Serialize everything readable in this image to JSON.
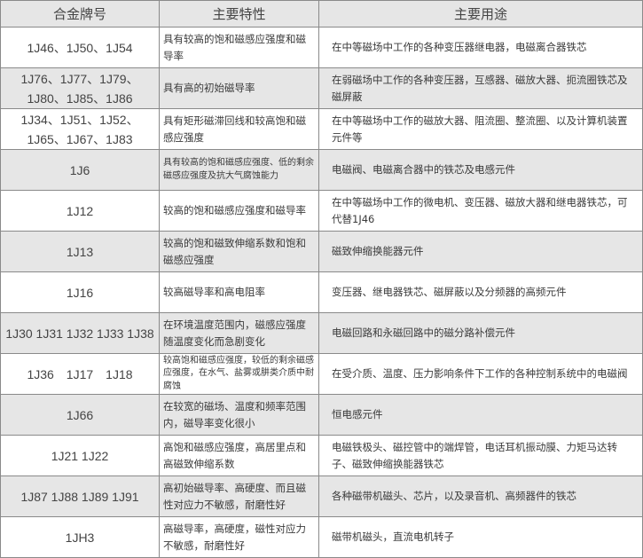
{
  "table": {
    "headers": [
      "合金牌号",
      "主要特性",
      "主要用途"
    ],
    "rows": [
      {
        "grade": "1J46、1J50、1J54",
        "property": "具有较高的饱和磁感应强度和磁导率",
        "usage": "在中等磁场中工作的各种变压器继电器，电磁离合器铁芯"
      },
      {
        "grade": "1J76、1J77、1J79、1J80、1J85、1J86",
        "property": "具有高的初始磁导率",
        "usage": "在弱磁场中工作的各种变压器，互感器、磁放大器、扼流圈铁芯及磁屏蔽"
      },
      {
        "grade": "1J34、1J51、1J52、1J65、1J67、1J83",
        "property": "具有矩形磁滞回线和较高饱和磁感应强度",
        "usage": "在中等磁场中工作的磁放大器、阻流圈、整流圈、以及计算机装置元件等"
      },
      {
        "grade": "1J6",
        "property": "具有较高的饱和磁感应强度、低的剩余磁感应强度及抗大气腐蚀能力",
        "usage": "电磁阀、电磁离合器中的铁芯及电感元件"
      },
      {
        "grade": "1J12",
        "property": "较高的饱和磁感应强度和磁导率",
        "usage": "在中等磁场中工作的微电机、变压器、磁放大器和继电器铁芯，可代替1J46"
      },
      {
        "grade": "1J13",
        "property": "较高的饱和磁致伸缩系数和饱和磁感应强度",
        "usage": "磁致伸缩换能器元件"
      },
      {
        "grade": "1J16",
        "property": "较高磁导率和高电阻率",
        "usage": "变压器、继电器铁芯、磁屏蔽以及分频器的高频元件"
      },
      {
        "grade": "1J30 1J31 1J32 1J33 1J38",
        "property": "在环境温度范围内，磁感应强度随温度变化而急剧变化",
        "usage": "电磁回路和永磁回路中的磁分路补偿元件"
      },
      {
        "grade": "1J36　1J17　1J18",
        "property": "较高饱和磁感应强度，较低的剩余磁感应强度，在水气、盐雾或肼类介质中耐腐蚀",
        "usage": "在受介质、温度、压力影响条件下工作的各种控制系统中的电磁阀"
      },
      {
        "grade": "1J66",
        "property": "在较宽的磁场、温度和频率范围内，磁导率变化很小",
        "usage": "恒电感元件"
      },
      {
        "grade": "1J21 1J22",
        "property": "高饱和磁感应强度，高居里点和高磁致伸缩系数",
        "usage": "电磁铁极头、磁控管中的端焊管，电话耳机振动膜、力矩马达转子、磁致伸缩换能器铁芯"
      },
      {
        "grade": "1J87 1J88 1J89 1J91",
        "property": "高初始磁导率、高硬度、而且磁性对应力不敏感，耐磨性好",
        "usage": "各种磁带机磁头、芯片，以及录音机、高频器件的铁芯"
      },
      {
        "grade": "1JH3",
        "property": "高磁导率，高硬度，磁性对应力不敏感，耐磨性好",
        "usage": "磁带机磁头，直流电机转子"
      }
    ]
  },
  "colors": {
    "header_bg": "#e6e6e6",
    "alt_row_bg": "#e6e6e6",
    "border": "#8a8a8a"
  }
}
